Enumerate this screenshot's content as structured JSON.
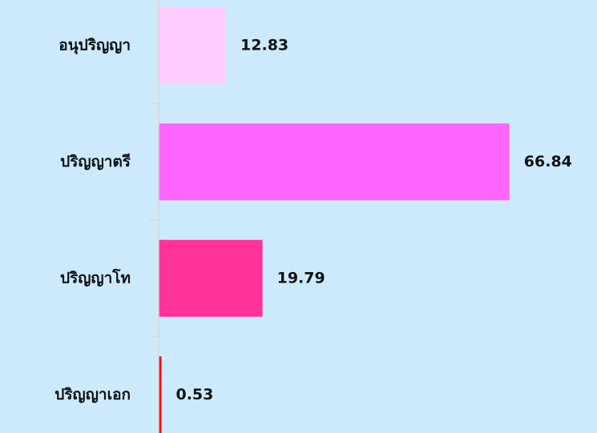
{
  "chart_data": {
    "type": "bar",
    "orientation": "horizontal",
    "categories": [
      "อนุปริญญา",
      "ปริญญาตรี",
      "ปริญญาโท",
      "ปริญญาเอก"
    ],
    "values": [
      12.83,
      66.84,
      19.79,
      0.53
    ],
    "colors": [
      "#ffccff",
      "#ff66ff",
      "#ff3399",
      "#ff0000"
    ],
    "xlim": [
      0,
      80
    ]
  }
}
